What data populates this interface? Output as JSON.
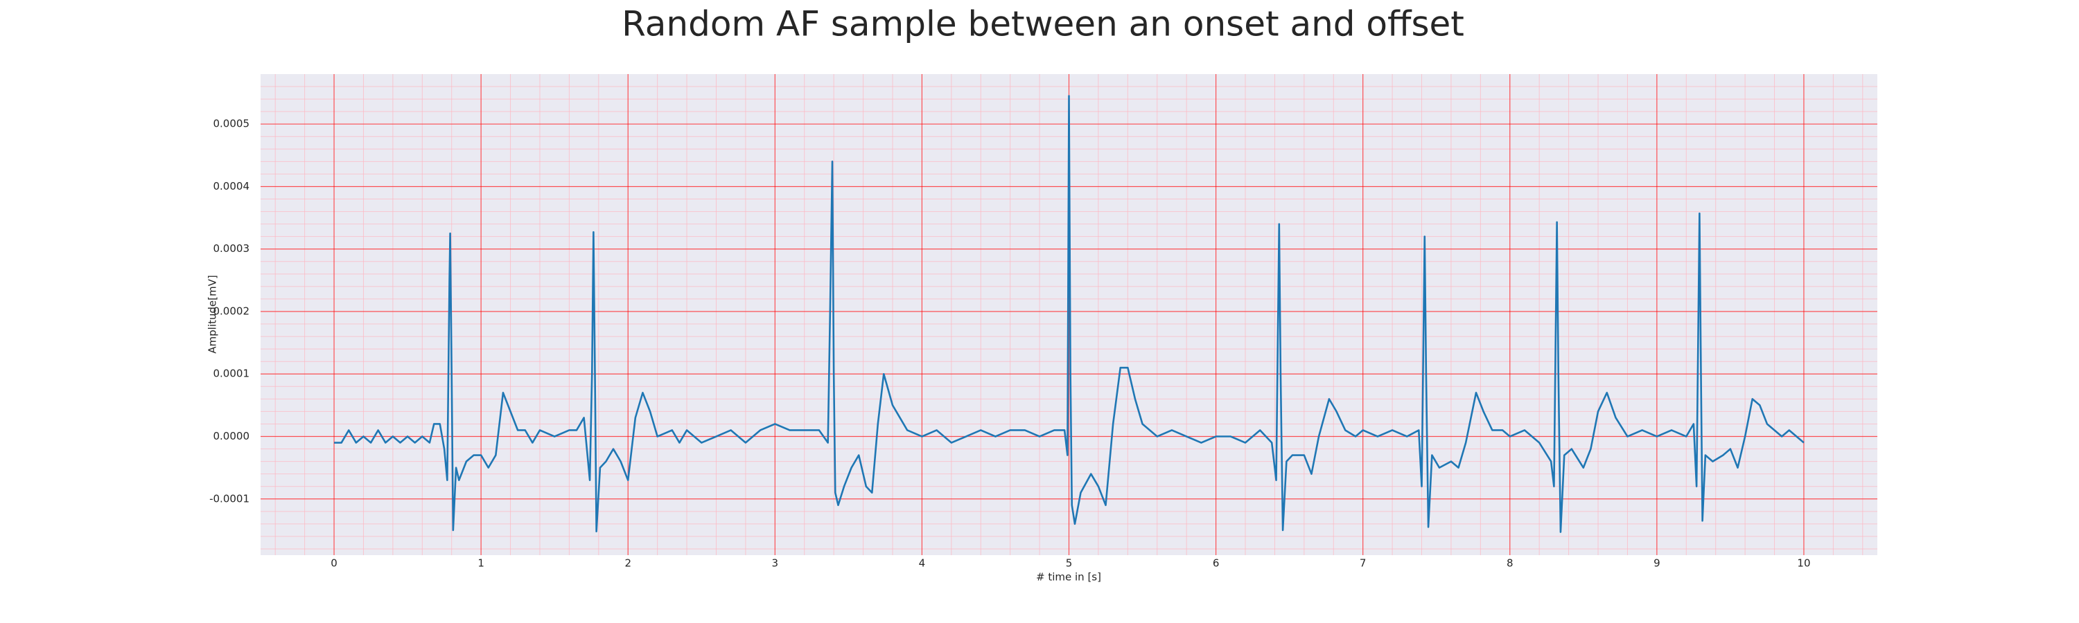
{
  "chart_data": {
    "type": "line",
    "title": "Random AF sample between an onset and offset",
    "x_label": "# time in [s]",
    "y_label": "Amplitude[mV]",
    "x": [
      0,
      0.05,
      0.1,
      0.15,
      0.2,
      0.25,
      0.3,
      0.35,
      0.4,
      0.45,
      0.5,
      0.55,
      0.6,
      0.65,
      0.68,
      0.72,
      0.75,
      0.77,
      0.785,
      0.79,
      0.8,
      0.81,
      0.83,
      0.85,
      0.9,
      0.95,
      1.0,
      1.05,
      1.1,
      1.15,
      1.2,
      1.25,
      1.3,
      1.35,
      1.4,
      1.5,
      1.6,
      1.65,
      1.7,
      1.74,
      1.755,
      1.765,
      1.775,
      1.785,
      1.81,
      1.85,
      1.9,
      1.95,
      2.0,
      2.05,
      2.1,
      2.15,
      2.2,
      2.3,
      2.35,
      2.4,
      2.5,
      2.6,
      2.7,
      2.8,
      2.9,
      3.0,
      3.1,
      3.2,
      3.3,
      3.36,
      3.375,
      3.39,
      3.4,
      3.41,
      3.43,
      3.47,
      3.52,
      3.57,
      3.62,
      3.66,
      3.7,
      3.74,
      3.8,
      3.85,
      3.9,
      4.0,
      4.1,
      4.2,
      4.3,
      4.4,
      4.5,
      4.6,
      4.7,
      4.8,
      4.9,
      4.97,
      4.99,
      5.0,
      5.01,
      5.02,
      5.04,
      5.08,
      5.15,
      5.2,
      5.25,
      5.3,
      5.35,
      5.4,
      5.45,
      5.5,
      5.55,
      5.6,
      5.7,
      5.8,
      5.9,
      6.0,
      6.1,
      6.2,
      6.3,
      6.38,
      6.41,
      6.43,
      6.44,
      6.455,
      6.48,
      6.52,
      6.6,
      6.65,
      6.7,
      6.77,
      6.82,
      6.88,
      6.95,
      7.0,
      7.1,
      7.2,
      7.3,
      7.38,
      7.4,
      7.42,
      7.43,
      7.445,
      7.47,
      7.52,
      7.6,
      7.65,
      7.7,
      7.77,
      7.82,
      7.88,
      7.95,
      8.0,
      8.1,
      8.2,
      8.28,
      8.3,
      8.32,
      8.33,
      8.345,
      8.37,
      8.42,
      8.5,
      8.55,
      8.6,
      8.66,
      8.72,
      8.8,
      8.9,
      9.0,
      9.1,
      9.2,
      9.25,
      9.27,
      9.29,
      9.3,
      9.31,
      9.33,
      9.38,
      9.45,
      9.5,
      9.55,
      9.6,
      9.65,
      9.7,
      9.75,
      9.8,
      9.85,
      9.9,
      9.95,
      10.0
    ],
    "values": [
      -1e-05,
      -1e-05,
      1e-05,
      -1e-05,
      0,
      -1e-05,
      1e-05,
      -1e-05,
      0,
      -1e-05,
      0,
      -1e-05,
      0,
      -1e-05,
      2e-05,
      2e-05,
      -2e-05,
      -7e-05,
      0.00025,
      0.000325,
      0.0001,
      -0.00015,
      -5e-05,
      -7e-05,
      -4e-05,
      -3e-05,
      -3e-05,
      -5e-05,
      -3e-05,
      7e-05,
      4e-05,
      1e-05,
      1e-05,
      -1e-05,
      1e-05,
      0,
      1e-05,
      1e-05,
      3e-05,
      -7e-05,
      0.0001,
      0.000327,
      0.0001,
      -0.000152,
      -5e-05,
      -4e-05,
      -2e-05,
      -4e-05,
      -7e-05,
      3e-05,
      7e-05,
      4e-05,
      0,
      1e-05,
      -1e-05,
      1e-05,
      -1e-05,
      0,
      1e-05,
      -1e-05,
      1e-05,
      2e-05,
      1e-05,
      1e-05,
      1e-05,
      -1e-05,
      0.0002,
      0.00044,
      0.0001,
      -9e-05,
      -0.00011,
      -8e-05,
      -5e-05,
      -3e-05,
      -8e-05,
      -9e-05,
      2e-05,
      0.0001,
      5e-05,
      3e-05,
      1e-05,
      0,
      1e-05,
      -1e-05,
      0,
      1e-05,
      0,
      1e-05,
      1e-05,
      0,
      1e-05,
      1e-05,
      -3e-05,
      0.000545,
      0.0001,
      -0.00011,
      -0.00014,
      -9e-05,
      -6e-05,
      -8e-05,
      -0.00011,
      2e-05,
      0.00011,
      0.00011,
      6e-05,
      2e-05,
      1e-05,
      0,
      1e-05,
      0,
      -1e-05,
      0,
      0,
      -1e-05,
      1e-05,
      -1e-05,
      -7e-05,
      0.00034,
      0.0001,
      -0.00015,
      -4e-05,
      -3e-05,
      -3e-05,
      -6e-05,
      0,
      6e-05,
      4e-05,
      1e-05,
      0,
      1e-05,
      0,
      1e-05,
      0,
      1e-05,
      -8e-05,
      0.00032,
      0.0001,
      -0.000145,
      -3e-05,
      -5e-05,
      -4e-05,
      -5e-05,
      -1e-05,
      7e-05,
      4e-05,
      1e-05,
      1e-05,
      0,
      1e-05,
      -1e-05,
      -4e-05,
      -8e-05,
      0.000343,
      0.0001,
      -0.000153,
      -3e-05,
      -2e-05,
      -5e-05,
      -2e-05,
      4e-05,
      7e-05,
      3e-05,
      0,
      1e-05,
      0,
      1e-05,
      0,
      2e-05,
      -8e-05,
      0.000357,
      0.0001,
      -0.000135,
      -3e-05,
      -4e-05,
      -3e-05,
      -2e-05,
      -5e-05,
      0,
      6e-05,
      5e-05,
      2e-05,
      1e-05,
      0,
      1e-05,
      0,
      -1e-05
    ],
    "color": "#1f77b4",
    "xlim": [
      -0.5,
      10.5
    ],
    "xticks": [
      0,
      1,
      2,
      3,
      4,
      5,
      6,
      7,
      8,
      9,
      10
    ],
    "ylim": [
      -0.00019,
      0.00058
    ],
    "yticks": [
      -0.0001,
      {
        "value": 0,
        "label": "0.0000"
      },
      0.0001,
      0.0002,
      0.0003,
      0.0004,
      0.0005
    ],
    "grid": true,
    "minor_grid": true
  }
}
